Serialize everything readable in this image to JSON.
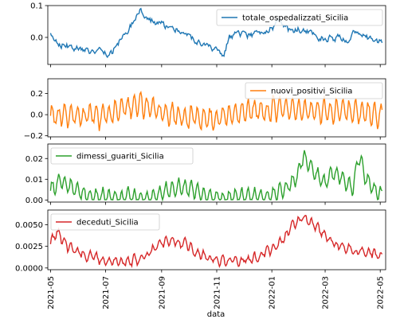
{
  "figure": {
    "xlabel": "data",
    "xticks": [
      "2021-05",
      "2021-07",
      "2021-09",
      "2021-11",
      "2022-01",
      "2022-03",
      "2022-05"
    ]
  },
  "chart_data": [
    {
      "type": "line",
      "title": "",
      "series": [
        {
          "name": "totale_ospedalizzati_Sicilia",
          "color": "#1f77b4"
        }
      ],
      "x_range": [
        "2021-04-28",
        "2022-05-07"
      ],
      "ylim": [
        -0.085,
        0.1
      ],
      "yticks": [
        "0.1",
        "0.0"
      ],
      "ytick_values": [
        0.1,
        0.0
      ],
      "legend": "top-right",
      "anchors": [
        [
          "2021-05-01",
          0.015
        ],
        [
          "2021-05-10",
          -0.02
        ],
        [
          "2021-05-25",
          -0.03
        ],
        [
          "2021-06-10",
          -0.04
        ],
        [
          "2021-06-25",
          -0.045
        ],
        [
          "2021-07-05",
          -0.06
        ],
        [
          "2021-07-15",
          -0.02
        ],
        [
          "2021-07-25",
          0.02
        ],
        [
          "2021-08-02",
          0.06
        ],
        [
          "2021-08-08",
          0.09
        ],
        [
          "2021-08-20",
          0.055
        ],
        [
          "2021-09-05",
          0.035
        ],
        [
          "2021-09-20",
          0.02
        ],
        [
          "2021-10-05",
          -0.005
        ],
        [
          "2021-10-20",
          -0.03
        ],
        [
          "2021-11-01",
          -0.045
        ],
        [
          "2021-11-08",
          -0.065
        ],
        [
          "2021-11-15",
          0.0
        ],
        [
          "2021-11-25",
          0.01
        ],
        [
          "2021-12-05",
          0.005
        ],
        [
          "2021-12-20",
          0.02
        ],
        [
          "2022-01-01",
          0.03
        ],
        [
          "2022-01-10",
          0.05
        ],
        [
          "2022-01-20",
          0.02
        ],
        [
          "2022-02-01",
          0.025
        ],
        [
          "2022-02-15",
          0.01
        ],
        [
          "2022-03-01",
          -0.005
        ],
        [
          "2022-03-15",
          0.0
        ],
        [
          "2022-03-25",
          -0.015
        ],
        [
          "2022-04-05",
          0.025
        ],
        [
          "2022-04-15",
          0.0
        ],
        [
          "2022-04-25",
          -0.01
        ],
        [
          "2022-05-03",
          -0.015
        ]
      ],
      "noise": 0.009,
      "weekly": 0.0
    },
    {
      "type": "line",
      "title": "",
      "series": [
        {
          "name": "nuovi_positivi_Sicilia",
          "color": "#ff7f0e"
        }
      ],
      "x_range": [
        "2021-04-28",
        "2022-05-07"
      ],
      "ylim": [
        -0.21,
        0.34
      ],
      "yticks": [
        "0.2",
        "0.0",
        "−0.2"
      ],
      "ytick_values": [
        0.2,
        0.0,
        -0.2
      ],
      "legend": "top-right",
      "anchors": [
        [
          "2021-05-01",
          0.0
        ],
        [
          "2021-06-01",
          -0.02
        ],
        [
          "2021-07-01",
          0.0
        ],
        [
          "2021-07-20",
          0.05
        ],
        [
          "2021-08-10",
          0.1
        ],
        [
          "2021-09-01",
          0.02
        ],
        [
          "2021-10-01",
          -0.02
        ],
        [
          "2021-11-01",
          -0.03
        ],
        [
          "2021-12-01",
          0.03
        ],
        [
          "2022-01-05",
          0.06
        ],
        [
          "2022-02-01",
          0.05
        ],
        [
          "2022-03-01",
          0.04
        ],
        [
          "2022-04-01",
          0.03
        ],
        [
          "2022-05-03",
          -0.02
        ]
      ],
      "noise": 0.025,
      "weekly": 0.11
    },
    {
      "type": "line",
      "title": "",
      "series": [
        {
          "name": "dimessi_guariti_Sicilia",
          "color": "#2ca02c"
        }
      ],
      "x_range": [
        "2021-04-28",
        "2022-05-07"
      ],
      "ylim": [
        -0.001,
        0.027
      ],
      "yticks": [
        "0.02",
        "0.01",
        "0.00"
      ],
      "ytick_values": [
        0.02,
        0.01,
        0.0
      ],
      "legend": "top-left",
      "anchors": [
        [
          "2021-05-01",
          0.005
        ],
        [
          "2021-05-12",
          0.009
        ],
        [
          "2021-05-25",
          0.006
        ],
        [
          "2021-06-15",
          0.002
        ],
        [
          "2021-07-15",
          0.001
        ],
        [
          "2021-08-15",
          0.001
        ],
        [
          "2021-09-05",
          0.004
        ],
        [
          "2021-09-20",
          0.006
        ],
        [
          "2021-10-05",
          0.005
        ],
        [
          "2021-10-20",
          0.002
        ],
        [
          "2021-11-15",
          0.001
        ],
        [
          "2021-12-15",
          0.0015
        ],
        [
          "2022-01-01",
          0.002
        ],
        [
          "2022-01-10",
          0.004
        ],
        [
          "2022-01-20",
          0.007
        ],
        [
          "2022-01-30",
          0.012
        ],
        [
          "2022-02-05",
          0.022
        ],
        [
          "2022-02-15",
          0.015
        ],
        [
          "2022-03-01",
          0.008
        ],
        [
          "2022-03-10",
          0.013
        ],
        [
          "2022-03-20",
          0.011
        ],
        [
          "2022-04-01",
          0.006
        ],
        [
          "2022-04-07",
          0.022
        ],
        [
          "2022-04-15",
          0.01
        ],
        [
          "2022-04-25",
          0.004
        ],
        [
          "2022-05-03",
          0.003
        ]
      ],
      "noise": 0.0008,
      "weekly": 0.004
    },
    {
      "type": "line",
      "title": "",
      "series": [
        {
          "name": "deceduti_Sicilia",
          "color": "#d62728"
        }
      ],
      "x_range": [
        "2021-04-28",
        "2022-05-07"
      ],
      "ylim": [
        -0.0002,
        0.0067
      ],
      "yticks": [
        "0.0050",
        "0.0025",
        "0.0000"
      ],
      "ytick_values": [
        0.005,
        0.0025,
        0.0
      ],
      "legend": "top-left",
      "anchors": [
        [
          "2021-05-01",
          0.003
        ],
        [
          "2021-05-08",
          0.004
        ],
        [
          "2021-05-20",
          0.0025
        ],
        [
          "2021-06-10",
          0.0015
        ],
        [
          "2021-07-01",
          0.0008
        ],
        [
          "2021-07-20",
          0.0006
        ],
        [
          "2021-08-10",
          0.0012
        ],
        [
          "2021-08-25",
          0.0022
        ],
        [
          "2021-09-10",
          0.0032
        ],
        [
          "2021-09-25",
          0.0028
        ],
        [
          "2021-10-10",
          0.0018
        ],
        [
          "2021-11-01",
          0.0009
        ],
        [
          "2021-11-25",
          0.0009
        ],
        [
          "2021-12-15",
          0.0012
        ],
        [
          "2022-01-01",
          0.002
        ],
        [
          "2022-01-15",
          0.0035
        ],
        [
          "2022-01-25",
          0.005
        ],
        [
          "2022-02-05",
          0.006
        ],
        [
          "2022-02-15",
          0.005
        ],
        [
          "2022-03-01",
          0.0038
        ],
        [
          "2022-03-15",
          0.0028
        ],
        [
          "2022-04-01",
          0.002
        ],
        [
          "2022-04-15",
          0.0018
        ],
        [
          "2022-05-03",
          0.0015
        ]
      ],
      "noise": 0.00025,
      "weekly": 0.0005
    }
  ]
}
